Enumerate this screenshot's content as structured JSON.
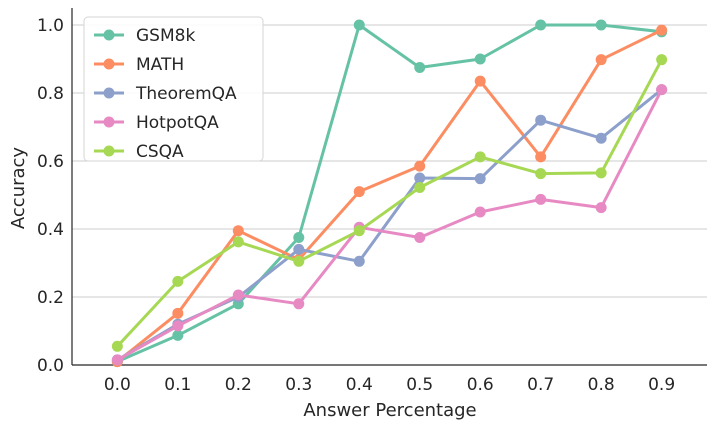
{
  "chart_data": {
    "type": "line",
    "title": "",
    "xlabel": "Answer Percentage",
    "ylabel": "Accuracy",
    "x": [
      0.0,
      0.1,
      0.2,
      0.3,
      0.4,
      0.5,
      0.6,
      0.7,
      0.8,
      0.9
    ],
    "x_tick_labels": [
      "0.0",
      "0.1",
      "0.2",
      "0.3",
      "0.4",
      "0.5",
      "0.6",
      "0.7",
      "0.8",
      "0.9"
    ],
    "y_ticks": [
      0.0,
      0.2,
      0.4,
      0.6,
      0.8,
      1.0
    ],
    "y_tick_labels": [
      "0.0",
      "0.2",
      "0.4",
      "0.6",
      "0.8",
      "1.0"
    ],
    "xlim": [
      -0.075,
      0.975
    ],
    "ylim": [
      0.0,
      1.05
    ],
    "grid": "horizontal",
    "legend_position": "top-left",
    "series": [
      {
        "name": "GSM8k",
        "color": "#66c2a5",
        "values": [
          0.01,
          0.087,
          0.18,
          0.375,
          1.0,
          0.875,
          0.9,
          1.0,
          1.0,
          0.98
        ]
      },
      {
        "name": "MATH",
        "color": "#fc8d62",
        "values": [
          0.01,
          0.152,
          0.395,
          0.31,
          0.51,
          0.585,
          0.835,
          0.612,
          0.898,
          0.985
        ]
      },
      {
        "name": "TheoremQA",
        "color": "#8da0cb",
        "values": [
          0.015,
          0.12,
          0.2,
          0.34,
          0.305,
          0.55,
          0.548,
          0.72,
          0.667,
          0.81
        ]
      },
      {
        "name": "HotpotQA",
        "color": "#e78ac3",
        "values": [
          0.015,
          0.115,
          0.206,
          0.18,
          0.405,
          0.375,
          0.45,
          0.487,
          0.463,
          0.81
        ]
      },
      {
        "name": "CSQA",
        "color": "#a6d854",
        "values": [
          0.055,
          0.246,
          0.362,
          0.305,
          0.395,
          0.522,
          0.612,
          0.563,
          0.565,
          0.898
        ]
      }
    ]
  }
}
